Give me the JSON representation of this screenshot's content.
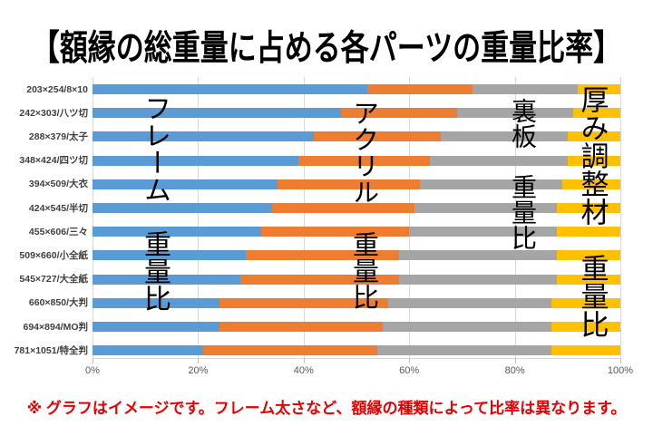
{
  "chart_data": {
    "type": "bar",
    "orientation": "horizontal-stacked-100pct",
    "title": "【額縁の総重量に占める各パーツの重量比率】",
    "categories": [
      "203×254/8×10",
      "242×303/八ツ切",
      "288×379/太子",
      "348×424/四ツ切",
      "394×509/大衣",
      "424×545/半切",
      "455×606/三々",
      "509×660/小全紙",
      "545×727/大全紙",
      "660×850/大判",
      "694×894/MO判",
      "781×1051/特全判"
    ],
    "series": [
      {
        "name": "フレーム　重量比",
        "color": "#5B9BD5",
        "values": [
          52,
          47,
          42,
          39,
          35,
          34,
          32,
          29,
          28,
          24,
          24,
          21
        ]
      },
      {
        "name": "アクリル　重量比",
        "color": "#ED7D31",
        "values": [
          20,
          22,
          24,
          25,
          27,
          27,
          28,
          29,
          30,
          32,
          31,
          33
        ]
      },
      {
        "name": "裏板　重量比",
        "color": "#A5A5A5",
        "values": [
          20,
          22,
          24,
          26,
          27,
          27,
          28,
          30,
          30,
          31,
          32,
          33
        ]
      },
      {
        "name": "厚み調整材　重量比",
        "color": "#FFC000",
        "values": [
          8,
          9,
          10,
          10,
          11,
          12,
          12,
          12,
          12,
          13,
          13,
          13
        ]
      }
    ],
    "x_ticks": [
      "0%",
      "20%",
      "40%",
      "60%",
      "80%",
      "100%"
    ],
    "xlim": [
      0,
      100
    ],
    "xlabel": "",
    "ylabel": "",
    "grid": "vertical-on",
    "legend_position": "overlaid-vertical-text"
  },
  "note": "※ グラフはイメージです。フレーム太さなど、額縁の種類によって比率は異なります。",
  "colors": {
    "frame_blue": "#5B9BD5",
    "acrylic_orange": "#ED7D31",
    "backboard_gray": "#A5A5A5",
    "spacer_yellow": "#FFC000",
    "gridline": "#D9D9D9",
    "axis_text": "#595959",
    "category_text": "#404040",
    "title_text": "#000000",
    "note_red": "#E60000"
  }
}
